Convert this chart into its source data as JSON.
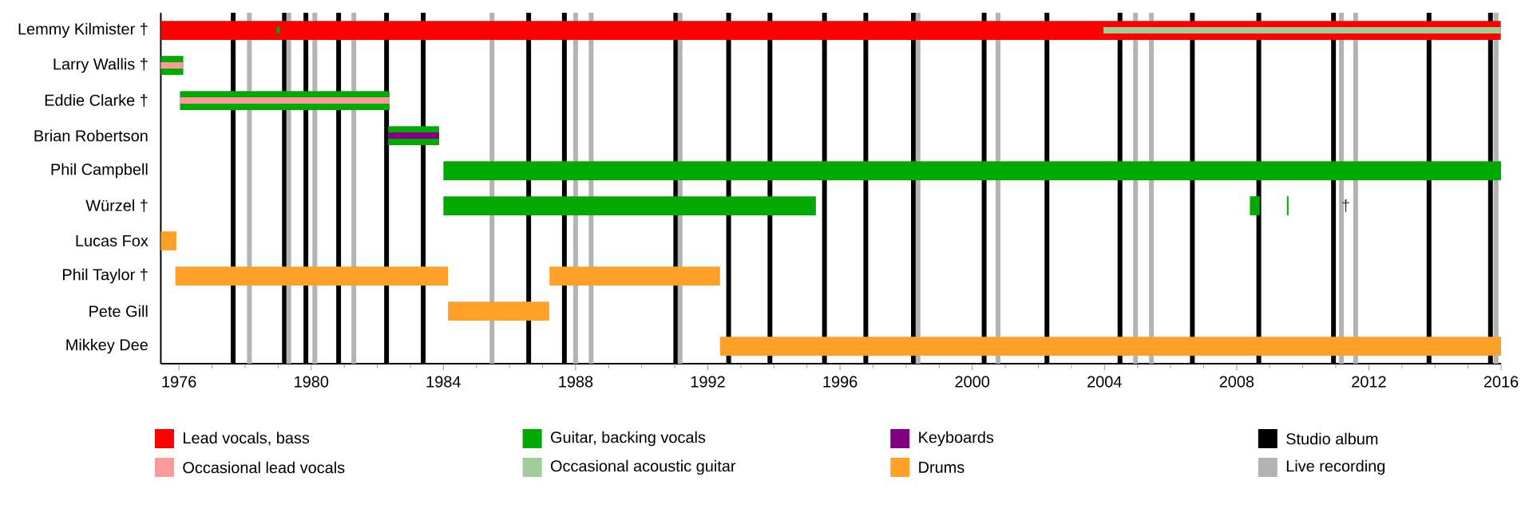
{
  "chart_data": {
    "type": "bar",
    "orientation": "horizontal",
    "categories": [
      "Lemmy Kilmister †",
      "Larry Wallis †",
      "Eddie Clarke †",
      "Brian Robertson",
      "Phil Campbell",
      "Würzel †",
      "Lucas Fox",
      "Phil Taylor †",
      "Pete Gill",
      "Mikkey Dee"
    ],
    "series": [
      {
        "name": "Lead vocals, bass",
        "color": "#ff0000",
        "base": [
          1975.45,
          null,
          null,
          null,
          null,
          null,
          null,
          null,
          null,
          null
        ],
        "values": [
          40.54,
          null,
          null,
          null,
          null,
          null,
          null,
          null,
          null,
          null
        ]
      },
      {
        "name": "Guitar, backing vocals",
        "color": "#00aa00",
        "base": [
          null,
          1975.45,
          1976.03,
          1982.33,
          1984.0,
          1984.0,
          null,
          null,
          null,
          null
        ],
        "values": [
          null,
          0.68,
          6.34,
          1.54,
          32.0,
          11.27,
          null,
          null,
          null,
          null
        ]
      },
      {
        "name": "Keyboards",
        "color": "#800080",
        "base": [
          null,
          null,
          null,
          1982.33,
          null,
          null,
          null,
          null,
          null,
          null
        ],
        "values": [
          null,
          null,
          null,
          1.54,
          null,
          null,
          null,
          null,
          null,
          null
        ]
      },
      {
        "name": "Occasional lead vocals",
        "color": "#ff9999",
        "base": [
          null,
          1975.45,
          1976.03,
          null,
          null,
          null,
          null,
          null,
          null,
          null
        ],
        "values": [
          null,
          0.68,
          6.34,
          null,
          null,
          null,
          null,
          null,
          null,
          null
        ]
      },
      {
        "name": "Occasional acoustic guitar",
        "color": "#a0cc99",
        "base": [
          2003.97,
          null,
          null,
          null,
          null,
          null,
          null,
          null,
          null,
          null
        ],
        "values": [
          12.02,
          null,
          null,
          null,
          null,
          null,
          null,
          null,
          null,
          null
        ]
      },
      {
        "name": "Drums",
        "color": "#ffa028",
        "base": [
          null,
          null,
          null,
          null,
          null,
          null,
          1975.45,
          1975.89,
          1984.14,
          1992.37
        ],
        "values": [
          null,
          null,
          null,
          null,
          null,
          null,
          0.47,
          8.25,
          3.06,
          23.63
        ]
      },
      {
        "color": "#00aa00",
        "base": [
          1978.95,
          null,
          null,
          null,
          null,
          2008.4,
          null,
          null,
          null,
          null
        ],
        "values": [
          0.1,
          null,
          null,
          null,
          null,
          0.3,
          null,
          null,
          null,
          null
        ]
      },
      {
        "color": "#00aa00",
        "base": [
          null,
          null,
          null,
          null,
          null,
          2009.52,
          null,
          null,
          null,
          null
        ],
        "values": [
          null,
          null,
          null,
          null,
          null,
          0.05,
          null,
          null,
          null,
          null
        ]
      },
      {
        "color": "#ffa028",
        "base": [
          null,
          null,
          null,
          null,
          null,
          null,
          null,
          1987.21,
          null,
          null
        ],
        "values": [
          null,
          null,
          null,
          null,
          null,
          null,
          null,
          5.16,
          null,
          null
        ]
      }
    ],
    "xlim": [
      1975.45,
      2016
    ],
    "xticks": [
      1976,
      1980,
      1984,
      1988,
      1992,
      1996,
      2000,
      2004,
      2008,
      2012,
      2016
    ],
    "ref_lines": [
      {
        "axis": "x",
        "value": 1977.64,
        "color": "#000000"
      },
      {
        "axis": "x",
        "value": 1979.19,
        "color": "#000000"
      },
      {
        "axis": "x",
        "value": 1979.84,
        "color": "#000000"
      },
      {
        "axis": "x",
        "value": 1980.83,
        "color": "#000000"
      },
      {
        "axis": "x",
        "value": 1982.28,
        "color": "#000000"
      },
      {
        "axis": "x",
        "value": 1983.39,
        "color": "#000000"
      },
      {
        "axis": "x",
        "value": 1986.58,
        "color": "#000000"
      },
      {
        "axis": "x",
        "value": 1987.66,
        "color": "#000000"
      },
      {
        "axis": "x",
        "value": 1991.03,
        "color": "#000000"
      },
      {
        "axis": "x",
        "value": 1992.63,
        "color": "#000000"
      },
      {
        "axis": "x",
        "value": 1993.88,
        "color": "#000000"
      },
      {
        "axis": "x",
        "value": 1995.53,
        "color": "#000000"
      },
      {
        "axis": "x",
        "value": 1996.78,
        "color": "#000000"
      },
      {
        "axis": "x",
        "value": 1998.22,
        "color": "#000000"
      },
      {
        "axis": "x",
        "value": 2000.36,
        "color": "#000000"
      },
      {
        "axis": "x",
        "value": 2002.26,
        "color": "#000000"
      },
      {
        "axis": "x",
        "value": 2004.47,
        "color": "#000000"
      },
      {
        "axis": "x",
        "value": 2006.66,
        "color": "#000000"
      },
      {
        "axis": "x",
        "value": 2008.67,
        "color": "#000000"
      },
      {
        "axis": "x",
        "value": 2010.93,
        "color": "#000000"
      },
      {
        "axis": "x",
        "value": 2013.82,
        "color": "#000000"
      },
      {
        "axis": "x",
        "value": 2015.68,
        "color": "#000000"
      },
      {
        "axis": "x",
        "value": 1978.13,
        "color": "#b3b3b3"
      },
      {
        "axis": "x",
        "value": 1979.32,
        "color": "#b3b3b3"
      },
      {
        "axis": "x",
        "value": 1980.11,
        "color": "#b3b3b3"
      },
      {
        "axis": "x",
        "value": 1981.29,
        "color": "#b3b3b3"
      },
      {
        "axis": "x",
        "value": 1985.47,
        "color": "#b3b3b3"
      },
      {
        "axis": "x",
        "value": 1988.0,
        "color": "#b3b3b3"
      },
      {
        "axis": "x",
        "value": 1988.47,
        "color": "#b3b3b3"
      },
      {
        "axis": "x",
        "value": 1991.16,
        "color": "#b3b3b3"
      },
      {
        "axis": "x",
        "value": 1998.36,
        "color": "#b3b3b3"
      },
      {
        "axis": "x",
        "value": 2000.78,
        "color": "#b3b3b3"
      },
      {
        "axis": "x",
        "value": 2004.94,
        "color": "#b3b3b3"
      },
      {
        "axis": "x",
        "value": 2005.42,
        "color": "#b3b3b3"
      },
      {
        "axis": "x",
        "value": 2011.17,
        "color": "#b3b3b3"
      },
      {
        "axis": "x",
        "value": 2011.6,
        "color": "#b3b3b3"
      },
      {
        "axis": "x",
        "value": 2015.85,
        "color": "#b3b3b3"
      }
    ],
    "annotations": [
      {
        "text": "†",
        "x": 2011.3,
        "y": "Würzel †"
      },
      "Studio album",
      "Live recording"
    ],
    "legend": "bottom"
  }
}
